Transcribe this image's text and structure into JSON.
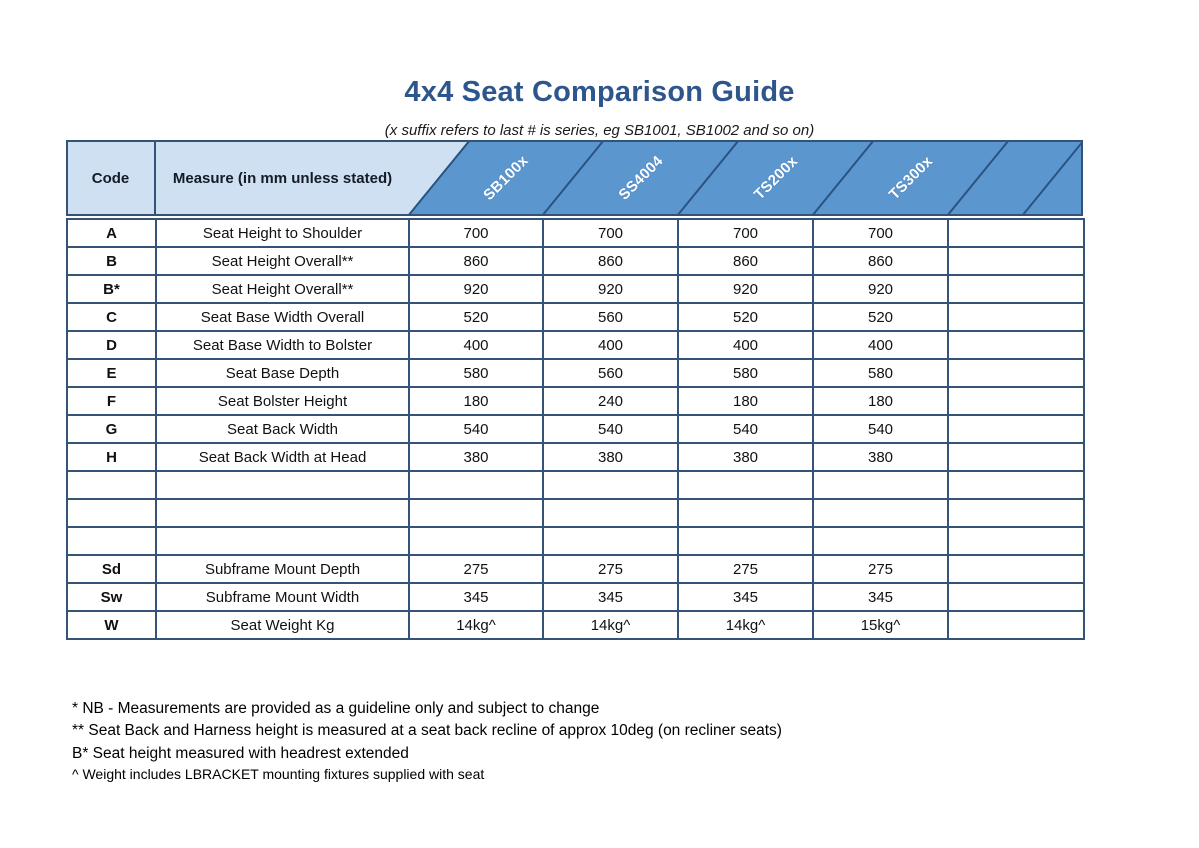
{
  "title": "4x4 Seat Comparison Guide",
  "subtitle": "(x suffix refers to last # is series, eg SB1001, SB1002 and so on)",
  "table": {
    "code_header": "Code",
    "measure_header": "Measure (in mm unless stated)",
    "products": [
      "SB100x",
      "SS4004",
      "TS200x",
      "TS300x"
    ],
    "rows": [
      {
        "code": "A",
        "measure": "Seat Height to Shoulder",
        "values": [
          "700",
          "700",
          "700",
          "700"
        ]
      },
      {
        "code": "B",
        "measure": "Seat Height Overall**",
        "values": [
          "860",
          "860",
          "860",
          "860"
        ]
      },
      {
        "code": "B*",
        "measure": "Seat Height Overall**",
        "values": [
          "920",
          "920",
          "920",
          "920"
        ]
      },
      {
        "code": "C",
        "measure": "Seat Base Width Overall",
        "values": [
          "520",
          "560",
          "520",
          "520"
        ]
      },
      {
        "code": "D",
        "measure": "Seat Base Width to Bolster",
        "values": [
          "400",
          "400",
          "400",
          "400"
        ]
      },
      {
        "code": "E",
        "measure": "Seat Base Depth",
        "values": [
          "580",
          "560",
          "580",
          "580"
        ]
      },
      {
        "code": "F",
        "measure": "Seat Bolster Height",
        "values": [
          "180",
          "240",
          "180",
          "180"
        ]
      },
      {
        "code": "G",
        "measure": "Seat Back Width",
        "values": [
          "540",
          "540",
          "540",
          "540"
        ]
      },
      {
        "code": "H",
        "measure": "Seat Back Width at Head",
        "values": [
          "380",
          "380",
          "380",
          "380"
        ]
      },
      {
        "code": "",
        "measure": "",
        "values": [
          "",
          "",
          "",
          ""
        ]
      },
      {
        "code": "",
        "measure": "",
        "values": [
          "",
          "",
          "",
          ""
        ]
      },
      {
        "code": "",
        "measure": "",
        "values": [
          "",
          "",
          "",
          ""
        ]
      },
      {
        "code": "Sd",
        "measure": "Subframe Mount Depth",
        "values": [
          "275",
          "275",
          "275",
          "275"
        ]
      },
      {
        "code": "Sw",
        "measure": "Subframe Mount Width",
        "values": [
          "345",
          "345",
          "345",
          "345"
        ]
      },
      {
        "code": "W",
        "measure": "Seat Weight Kg",
        "values": [
          "14kg^",
          "14kg^",
          "14kg^",
          "15kg^"
        ]
      }
    ]
  },
  "footnotes": [
    "* NB - Measurements are provided as a guideline only and subject to change",
    "** Seat Back and Harness height is measured at a seat back recline of approx 10deg (on recliner seats)",
    "B* Seat height measured with headrest extended",
    "^ Weight includes LBRACKET mounting fixtures supplied with seat"
  ],
  "colors": {
    "title_blue": "#2e568c",
    "header_light_blue": "#cfe0f2",
    "header_dark_blue": "#5b96cf",
    "border_navy": "#345377",
    "diagonal_line": "#2a5380"
  }
}
